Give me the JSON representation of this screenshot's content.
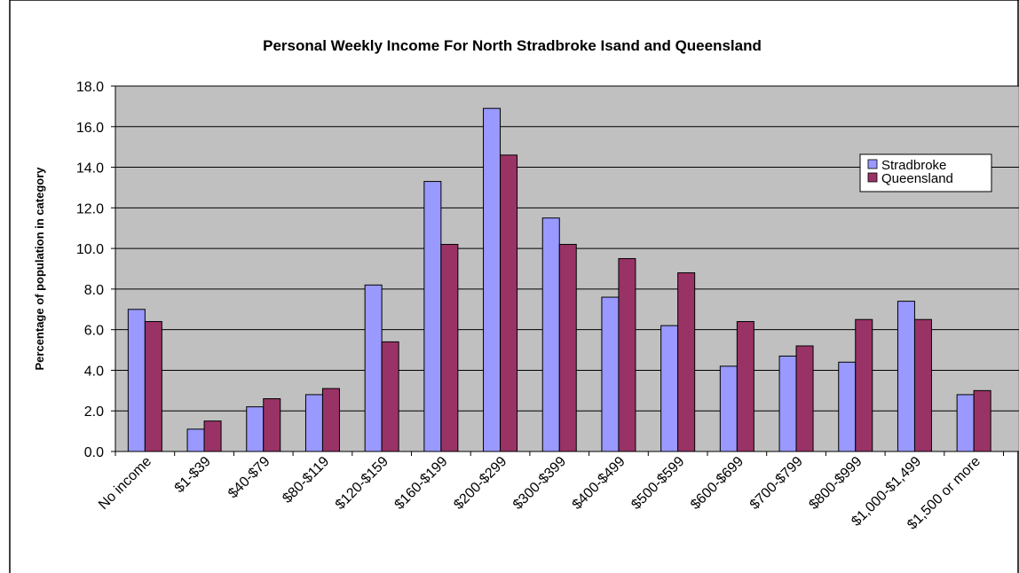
{
  "chart_data": {
    "type": "bar",
    "title": "Personal Weekly Income For North Stradbroke Isand and Queensland",
    "xlabel": "",
    "ylabel": "Percentage of population in category",
    "ylim": [
      0,
      18
    ],
    "yticks": [
      "0.0",
      "2.0",
      "4.0",
      "6.0",
      "8.0",
      "10.0",
      "12.0",
      "14.0",
      "16.0",
      "18.0"
    ],
    "grid": true,
    "legend_position": "right",
    "categories": [
      "No income",
      "$1-$39",
      "$40-$79",
      "$80-$119",
      "$120-$159",
      "$160-$199",
      "$200-$299",
      "$300-$399",
      "$400-$499",
      "$500-$599",
      "$600-$699",
      "$700-$799",
      "$800-$999",
      "$1,000-$1,499",
      "$1,500 or more"
    ],
    "series": [
      {
        "name": "Stradbroke",
        "color": "#9999ff",
        "values": [
          7.0,
          1.1,
          2.2,
          2.8,
          8.2,
          13.3,
          16.9,
          11.5,
          7.6,
          6.2,
          4.2,
          4.7,
          4.4,
          7.4,
          2.8
        ]
      },
      {
        "name": "Queensland",
        "color": "#993366",
        "values": [
          6.4,
          1.5,
          2.6,
          3.1,
          5.4,
          10.2,
          14.6,
          10.2,
          9.5,
          8.8,
          6.4,
          5.2,
          6.5,
          6.5,
          3.0
        ]
      }
    ],
    "plot_background": "#c0c0c0"
  }
}
